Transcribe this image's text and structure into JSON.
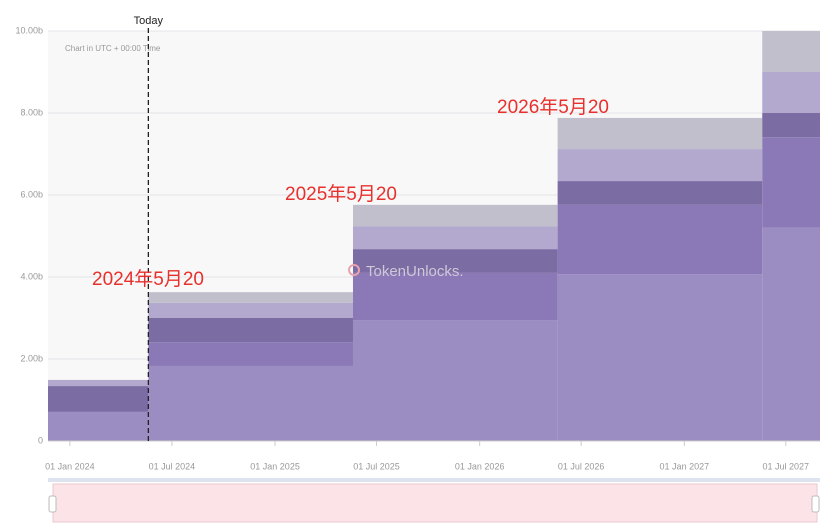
{
  "chart_data": {
    "type": "stacked-step-area",
    "subtitle": "Chart in UTC + 00:00 Time",
    "watermark": "TokenUnlocks.",
    "x": [
      "2023-11-23",
      "2024-05-20",
      "2025-05-20",
      "2026-05-20",
      "2027-05-20"
    ],
    "xlim": [
      "2023-11-23",
      "2027-08-31"
    ],
    "xticks": [
      {
        "value": "2024-01-01",
        "label": "01 Jan 2024"
      },
      {
        "value": "2024-07-01",
        "label": "01 Jul 2024"
      },
      {
        "value": "2025-01-01",
        "label": "01 Jan 2025"
      },
      {
        "value": "2025-07-01",
        "label": "01 Jul 2025"
      },
      {
        "value": "2026-01-01",
        "label": "01 Jan 2026"
      },
      {
        "value": "2026-07-01",
        "label": "01 Jul 2026"
      },
      {
        "value": "2027-01-01",
        "label": "01 Jan 2027"
      },
      {
        "value": "2027-07-01",
        "label": "01 Jul 2027"
      }
    ],
    "ylim": [
      0,
      10
    ],
    "yticks": [
      0,
      {
        "value": 2,
        "label": "2.00b"
      },
      {
        "value": 4,
        "label": "4.00b"
      },
      {
        "value": 6,
        "label": "6.00b"
      },
      {
        "value": 8,
        "label": "8.00b"
      },
      {
        "value": 10,
        "label": "10.00b"
      }
    ],
    "grid": true,
    "series": [
      {
        "color": "#9b8cc2",
        "values": [
          0.71,
          1.83,
          2.95,
          4.07,
          5.2
        ]
      },
      {
        "color": "#8a79b6",
        "values": [
          0,
          0.58,
          1.15,
          1.69,
          2.21
        ]
      },
      {
        "color": "#7b6ca3",
        "values": [
          0.63,
          0.59,
          0.58,
          0.58,
          0.59
        ]
      },
      {
        "color": "#b3a9cf",
        "values": [
          0.15,
          0.37,
          0.56,
          0.78,
          1.0
        ]
      },
      {
        "color": "#c2bfcc",
        "values": [
          0,
          0.26,
          0.52,
          0.76,
          1.0
        ]
      }
    ],
    "today": {
      "x": "2024-05-20",
      "label": "Today"
    },
    "annotations": [
      "2024年5月20",
      "2025年5月20",
      "2026年5月20"
    ]
  }
}
